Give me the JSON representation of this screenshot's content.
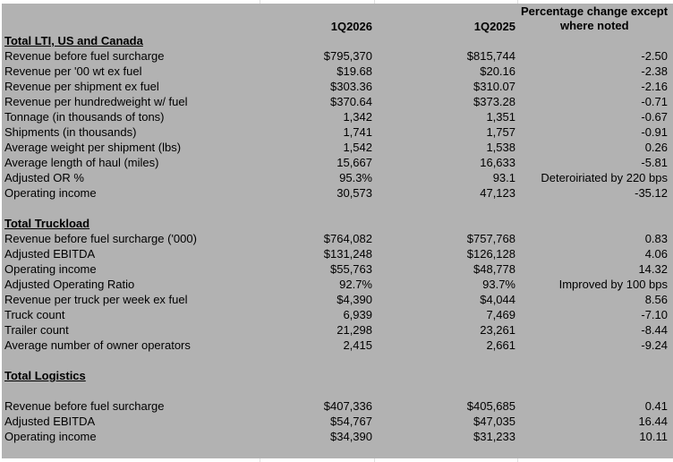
{
  "header": {
    "col1": "1Q2026",
    "col2": "1Q2025",
    "col3_line1": "Percentage change except",
    "col3_line2": "where noted"
  },
  "sections": [
    {
      "title": "Total LTI, US and Canada",
      "blank_after_title": false,
      "rows": [
        [
          "Revenue before fuel surcharge",
          "$795,370",
          "$815,744",
          "-2.50"
        ],
        [
          "Revenue per '00 wt ex fuel",
          "$19.68",
          "$20.16",
          "-2.38"
        ],
        [
          "Revenue per shipment ex fuel",
          "$303.36",
          "$310.07",
          "-2.16"
        ],
        [
          "Revenue per hundredweight w/  fuel",
          "$370.64",
          "$373.28",
          "-0.71"
        ],
        [
          "Tonnage (in thousands of tons)",
          "1,342",
          "1,351",
          "-0.67"
        ],
        [
          "Shipments (in thousands)",
          "1,741",
          "1,757",
          "-0.91"
        ],
        [
          "Average weight per shipment (lbs)",
          "1,542",
          "1,538",
          "0.26"
        ],
        [
          "Average length of haul (miles)",
          "15,667",
          "16,633",
          "-5.81"
        ],
        [
          "Adjusted OR %",
          "95.3%",
          "93.1",
          "Deteroiriated by 220 bps"
        ],
        [
          "Operating income",
          "30,573",
          "47,123",
          "-35.12"
        ]
      ]
    },
    {
      "title": "Total Truckload",
      "blank_after_title": false,
      "rows": [
        [
          "Revenue before fuel surcharge ('000)",
          "$764,082",
          "$757,768",
          "0.83"
        ],
        [
          "Adjusted EBITDA",
          "$131,248",
          "$126,128",
          "4.06"
        ],
        [
          "Operating income",
          "$55,763",
          "$48,778",
          "14.32"
        ],
        [
          "Adjusted Operating Ratio",
          "92.7%",
          "93.7%",
          "Improved by 100 bps"
        ],
        [
          "Revenue per truck per week ex fuel",
          "$4,390",
          "$4,044",
          "8.56"
        ],
        [
          "Truck count",
          "6,939",
          "7,469",
          "-7.10"
        ],
        [
          "Trailer count",
          "21,298",
          "23,261",
          "-8.44"
        ],
        [
          "Average number of owner operators",
          "2,415",
          "2,661",
          "-9.24"
        ]
      ]
    },
    {
      "title": "Total Logistics",
      "blank_after_title": true,
      "rows": [
        [
          "Revenue before fuel surcharge",
          "$407,336",
          "$405,685",
          "0.41"
        ],
        [
          "Adjusted EBITDA",
          "$54,767",
          "$47,035",
          "16.44"
        ],
        [
          "Operating income",
          "$34,390",
          "$31,233",
          "10.11"
        ]
      ]
    }
  ]
}
